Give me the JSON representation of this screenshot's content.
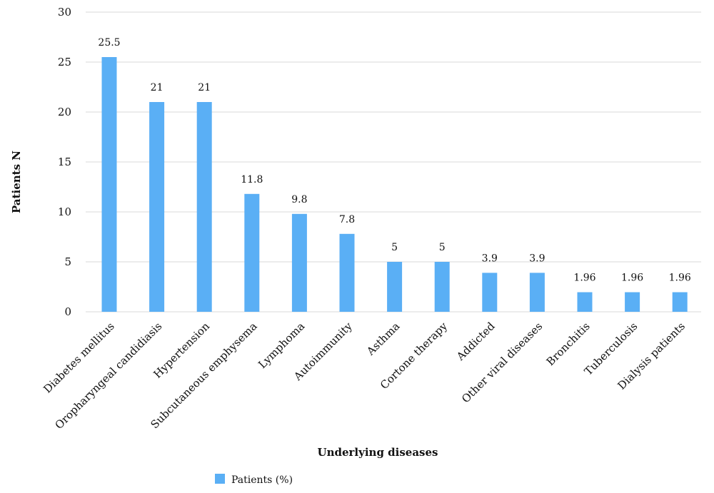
{
  "chart_data": {
    "type": "bar",
    "xlabel": "Underlying diseases",
    "ylabel": "Patients N",
    "ylim": [
      0,
      30
    ],
    "yticks": [
      0,
      5,
      10,
      15,
      20,
      25,
      30
    ],
    "grid": true,
    "legend_position": "bottom-left",
    "categories": [
      "Diabetes mellitus",
      "Oropharyngeal candidiasis",
      "Hypertension",
      "Subcutaneous emphysema",
      "Lymphoma",
      "Autoimmunity",
      "Asthma",
      "Cortone therapy",
      "Addicted",
      "Other viral diseases",
      "Bronchitis",
      "Tuberculosis",
      "Dialysis patients"
    ],
    "series": [
      {
        "name": "Patients (%)",
        "color": "#5aaff5",
        "values": [
          25.5,
          21,
          21,
          11.8,
          9.8,
          7.8,
          5,
          5,
          3.9,
          3.9,
          1.96,
          1.96,
          1.96
        ],
        "labels": [
          "25.5",
          "21",
          "21",
          "11.8",
          "9.8",
          "7.8",
          "5",
          "5",
          "3.9",
          "3.9",
          "1.96",
          "1.96",
          "1.96"
        ]
      }
    ]
  }
}
